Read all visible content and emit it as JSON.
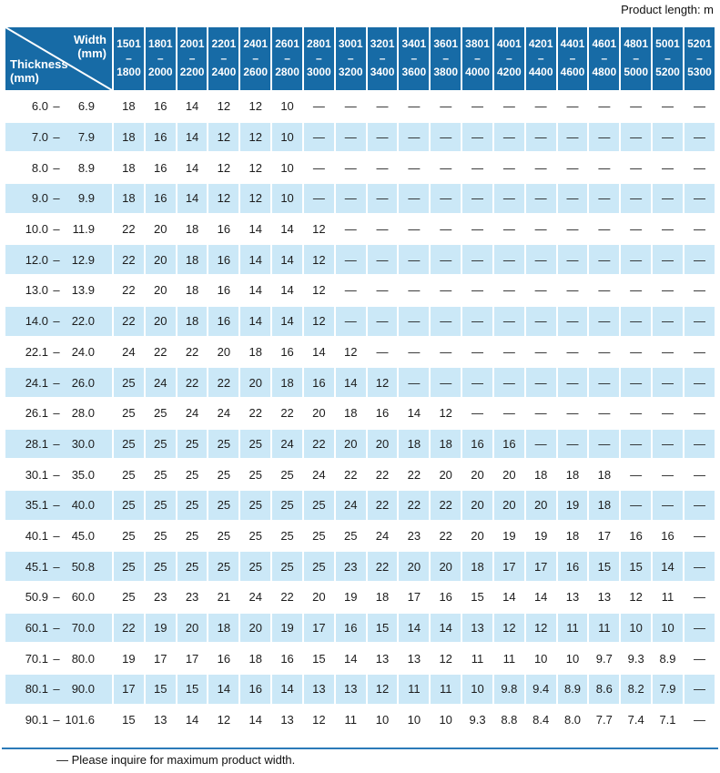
{
  "page": {
    "product_length_label": "Product length: m",
    "footnote": "— Please inquire for maximum product width."
  },
  "colors": {
    "header_blue": "#176ba6",
    "stripe_blue": "#cbe8f7",
    "rule_blue": "#2b7ab8",
    "text": "#1c1c1c"
  },
  "table": {
    "corner": {
      "width_label": "Width\n(mm)",
      "thickness_label": "Thickness\n(mm)"
    },
    "range_separator": "–",
    "width_columns": [
      {
        "line1": "1501",
        "line2": "–1800"
      },
      {
        "line1": "1801",
        "line2": "–2000"
      },
      {
        "line1": "2001",
        "line2": "–2200"
      },
      {
        "line1": "2201",
        "line2": "–2400"
      },
      {
        "line1": "2401",
        "line2": "–2600"
      },
      {
        "line1": "2601",
        "line2": "–2800"
      },
      {
        "line1": "2801",
        "line2": "–3000"
      },
      {
        "line1": "3001",
        "line2": "–3200"
      },
      {
        "line1": "3201",
        "line2": "–3400"
      },
      {
        "line1": "3401",
        "line2": "–3600"
      },
      {
        "line1": "3601",
        "line2": "–3800"
      },
      {
        "line1": "3801",
        "line2": "–4000"
      },
      {
        "line1": "4001",
        "line2": "–4200"
      },
      {
        "line1": "4201",
        "line2": "–4400"
      },
      {
        "line1": "4401",
        "line2": "–4600"
      },
      {
        "line1": "4601",
        "line2": "–4800"
      },
      {
        "line1": "4801",
        "line2": "–5000"
      },
      {
        "line1": "5001",
        "line2": "–5200"
      },
      {
        "line1": "5201",
        "line2": "–5300"
      }
    ],
    "rows": [
      {
        "thickness_min": "6.0",
        "thickness_max": "6.9",
        "values": [
          "18",
          "16",
          "14",
          "12",
          "12",
          "10",
          "—",
          "—",
          "—",
          "—",
          "—",
          "—",
          "—",
          "—",
          "—",
          "—",
          "—",
          "—",
          "—"
        ]
      },
      {
        "thickness_min": "7.0",
        "thickness_max": "7.9",
        "values": [
          "18",
          "16",
          "14",
          "12",
          "12",
          "10",
          "—",
          "—",
          "—",
          "—",
          "—",
          "—",
          "—",
          "—",
          "—",
          "—",
          "—",
          "—",
          "—"
        ]
      },
      {
        "thickness_min": "8.0",
        "thickness_max": "8.9",
        "values": [
          "18",
          "16",
          "14",
          "12",
          "12",
          "10",
          "—",
          "—",
          "—",
          "—",
          "—",
          "—",
          "—",
          "—",
          "—",
          "—",
          "—",
          "—",
          "—"
        ]
      },
      {
        "thickness_min": "9.0",
        "thickness_max": "9.9",
        "values": [
          "18",
          "16",
          "14",
          "12",
          "12",
          "10",
          "—",
          "—",
          "—",
          "—",
          "—",
          "—",
          "—",
          "—",
          "—",
          "—",
          "—",
          "—",
          "—"
        ]
      },
      {
        "thickness_min": "10.0",
        "thickness_max": "11.9",
        "values": [
          "22",
          "20",
          "18",
          "16",
          "14",
          "14",
          "12",
          "—",
          "—",
          "—",
          "—",
          "—",
          "—",
          "—",
          "—",
          "—",
          "—",
          "—",
          "—"
        ]
      },
      {
        "thickness_min": "12.0",
        "thickness_max": "12.9",
        "values": [
          "22",
          "20",
          "18",
          "16",
          "14",
          "14",
          "12",
          "—",
          "—",
          "—",
          "—",
          "—",
          "—",
          "—",
          "—",
          "—",
          "—",
          "—",
          "—"
        ]
      },
      {
        "thickness_min": "13.0",
        "thickness_max": "13.9",
        "values": [
          "22",
          "20",
          "18",
          "16",
          "14",
          "14",
          "12",
          "—",
          "—",
          "—",
          "—",
          "—",
          "—",
          "—",
          "—",
          "—",
          "—",
          "—",
          "—"
        ]
      },
      {
        "thickness_min": "14.0",
        "thickness_max": "22.0",
        "values": [
          "22",
          "20",
          "18",
          "16",
          "14",
          "14",
          "12",
          "—",
          "—",
          "—",
          "—",
          "—",
          "—",
          "—",
          "—",
          "—",
          "—",
          "—",
          "—"
        ]
      },
      {
        "thickness_min": "22.1",
        "thickness_max": "24.0",
        "values": [
          "24",
          "22",
          "22",
          "20",
          "18",
          "16",
          "14",
          "12",
          "—",
          "—",
          "—",
          "—",
          "—",
          "—",
          "—",
          "—",
          "—",
          "—",
          "—"
        ]
      },
      {
        "thickness_min": "24.1",
        "thickness_max": "26.0",
        "values": [
          "25",
          "24",
          "22",
          "22",
          "20",
          "18",
          "16",
          "14",
          "12",
          "—",
          "—",
          "—",
          "—",
          "—",
          "—",
          "—",
          "—",
          "—",
          "—"
        ]
      },
      {
        "thickness_min": "26.1",
        "thickness_max": "28.0",
        "values": [
          "25",
          "25",
          "24",
          "24",
          "22",
          "22",
          "20",
          "18",
          "16",
          "14",
          "12",
          "—",
          "—",
          "—",
          "—",
          "—",
          "—",
          "—",
          "—"
        ]
      },
      {
        "thickness_min": "28.1",
        "thickness_max": "30.0",
        "values": [
          "25",
          "25",
          "25",
          "25",
          "25",
          "24",
          "22",
          "20",
          "20",
          "18",
          "18",
          "16",
          "16",
          "—",
          "—",
          "—",
          "—",
          "—",
          "—"
        ]
      },
      {
        "thickness_min": "30.1",
        "thickness_max": "35.0",
        "values": [
          "25",
          "25",
          "25",
          "25",
          "25",
          "25",
          "24",
          "22",
          "22",
          "22",
          "20",
          "20",
          "20",
          "18",
          "18",
          "18",
          "—",
          "—",
          "—"
        ]
      },
      {
        "thickness_min": "35.1",
        "thickness_max": "40.0",
        "values": [
          "25",
          "25",
          "25",
          "25",
          "25",
          "25",
          "25",
          "24",
          "22",
          "22",
          "22",
          "20",
          "20",
          "20",
          "19",
          "18",
          "—",
          "—",
          "—"
        ]
      },
      {
        "thickness_min": "40.1",
        "thickness_max": "45.0",
        "values": [
          "25",
          "25",
          "25",
          "25",
          "25",
          "25",
          "25",
          "25",
          "24",
          "23",
          "22",
          "20",
          "19",
          "19",
          "18",
          "17",
          "16",
          "16",
          "—"
        ]
      },
      {
        "thickness_min": "45.1",
        "thickness_max": "50.8",
        "values": [
          "25",
          "25",
          "25",
          "25",
          "25",
          "25",
          "25",
          "23",
          "22",
          "20",
          "20",
          "18",
          "17",
          "17",
          "16",
          "15",
          "15",
          "14",
          "—"
        ]
      },
      {
        "thickness_min": "50.9",
        "thickness_max": "60.0",
        "values": [
          "25",
          "23",
          "23",
          "21",
          "24",
          "22",
          "20",
          "19",
          "18",
          "17",
          "16",
          "15",
          "14",
          "14",
          "13",
          "13",
          "12",
          "11",
          "—"
        ]
      },
      {
        "thickness_min": "60.1",
        "thickness_max": "70.0",
        "values": [
          "22",
          "19",
          "20",
          "18",
          "20",
          "19",
          "17",
          "16",
          "15",
          "14",
          "14",
          "13",
          "12",
          "12",
          "11",
          "11",
          "10",
          "10",
          "—"
        ]
      },
      {
        "thickness_min": "70.1",
        "thickness_max": "80.0",
        "values": [
          "19",
          "17",
          "17",
          "16",
          "18",
          "16",
          "15",
          "14",
          "13",
          "13",
          "12",
          "11",
          "11",
          "10",
          "10",
          "9.7",
          "9.3",
          "8.9",
          "—"
        ]
      },
      {
        "thickness_min": "80.1",
        "thickness_max": "90.0",
        "values": [
          "17",
          "15",
          "15",
          "14",
          "16",
          "14",
          "13",
          "13",
          "12",
          "11",
          "11",
          "10",
          "9.8",
          "9.4",
          "8.9",
          "8.6",
          "8.2",
          "7.9",
          "—"
        ]
      },
      {
        "thickness_min": "90.1",
        "thickness_max": "101.6",
        "values": [
          "15",
          "13",
          "14",
          "12",
          "14",
          "13",
          "12",
          "11",
          "10",
          "10",
          "10",
          "9.3",
          "8.8",
          "8.4",
          "8.0",
          "7.7",
          "7.4",
          "7.1",
          "—"
        ]
      }
    ]
  }
}
